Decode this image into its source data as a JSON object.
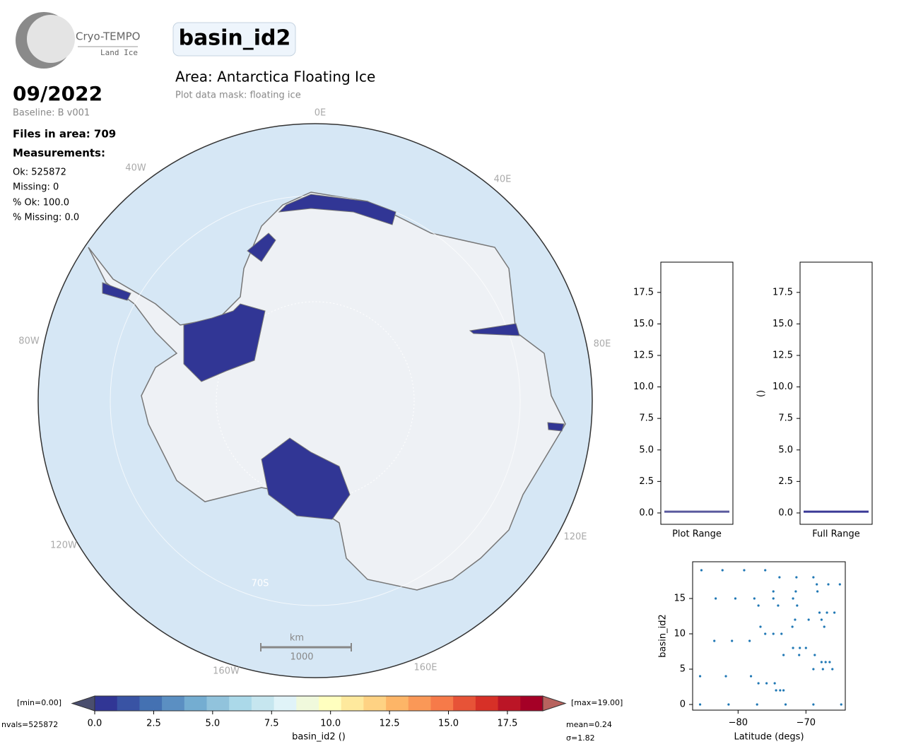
{
  "logo": {
    "name": "Cryo-TEMPO",
    "subtitle": "Land Ice"
  },
  "title": "basin_id2",
  "area": "Area: Antarctica Floating Ice",
  "mask": "Plot data mask: floating ice",
  "date": "09/2022",
  "baseline": "Baseline: B v001",
  "files": "Files in area: 709",
  "measurements": {
    "heading": "Measurements:",
    "lines": [
      "Ok: 525872",
      "Missing: 0",
      "% Ok: 100.0",
      "% Missing: 0.0"
    ]
  },
  "map": {
    "graticule_labels": [
      "0E",
      "40E",
      "80E",
      "120E",
      "160E",
      "160W",
      "120W",
      "80W",
      "40W",
      "70S"
    ],
    "scale_unit": "km",
    "scale_value": "1000"
  },
  "chart_data": [
    {
      "type": "colorbar",
      "label": "basin_id2 ()",
      "xlim": [
        0,
        19
      ],
      "xticks": [
        {
          "value": 0,
          "label": "0.0"
        },
        {
          "value": 2.5,
          "label": "2.5"
        },
        {
          "value": 5,
          "label": "5.0"
        },
        {
          "value": 7.5,
          "label": "7.5"
        },
        {
          "value": 10,
          "label": "10.0"
        },
        {
          "value": 12.5,
          "label": "12.5"
        },
        {
          "value": 15,
          "label": "15.0"
        },
        {
          "value": 17.5,
          "label": "17.5"
        }
      ],
      "colors": [
        "#313695",
        "#3953a4",
        "#4471b2",
        "#5b8fc2",
        "#74add1",
        "#91c3dc",
        "#abd9e9",
        "#c6e6ef",
        "#e0f3f8",
        "#f0f9dc",
        "#ffffbf",
        "#fee99d",
        "#fed283",
        "#fdb567",
        "#fa9857",
        "#f67a49",
        "#e75337",
        "#d73027",
        "#bb1526",
        "#a50026"
      ],
      "under_color": "#4a4e6e",
      "over_color": "#b8635e",
      "min_label": "[min=0.00]",
      "max_label": "[max=19.00]",
      "nvals": "nvals=525872",
      "mean": "mean=0.24",
      "sigma": "σ=1.82"
    },
    {
      "type": "level",
      "xlabel": "Plot Range",
      "values": [
        0.1
      ],
      "color": "#5a5a9e",
      "ylim": [
        -0.9,
        19.9
      ],
      "yticks": [
        {
          "value": 0,
          "label": "0.0"
        },
        {
          "value": 2.5,
          "label": "2.5"
        },
        {
          "value": 5,
          "label": "5.0"
        },
        {
          "value": 7.5,
          "label": "7.5"
        },
        {
          "value": 10,
          "label": "10.0"
        },
        {
          "value": 12.5,
          "label": "12.5"
        },
        {
          "value": 15,
          "label": "15.0"
        },
        {
          "value": 17.5,
          "label": "17.5"
        }
      ]
    },
    {
      "type": "level",
      "xlabel": "Full Range",
      "ylabel": "()",
      "values": [
        0.1
      ],
      "color": "#3b3a96",
      "ylim": [
        -0.9,
        19.9
      ],
      "yticks": [
        {
          "value": 0,
          "label": "0.0"
        },
        {
          "value": 2.5,
          "label": "2.5"
        },
        {
          "value": 5,
          "label": "5.0"
        },
        {
          "value": 7.5,
          "label": "7.5"
        },
        {
          "value": 10,
          "label": "10.0"
        },
        {
          "value": 12.5,
          "label": "12.5"
        },
        {
          "value": 15,
          "label": "15.0"
        },
        {
          "value": 17.5,
          "label": "17.5"
        }
      ]
    },
    {
      "type": "scatter",
      "xlabel": "Latitude (degs)",
      "ylabel": "basin_id2",
      "color": "#1f77b4",
      "xlim": [
        -86.7,
        -64.2
      ],
      "ylim": [
        -0.8,
        20.2
      ],
      "xticks": [
        {
          "value": -80,
          "label": "−80"
        },
        {
          "value": -70,
          "label": "−70"
        }
      ],
      "yticks": [
        0,
        5,
        10,
        15
      ],
      "x": [
        -85.4,
        -82.3,
        -79.1,
        -76.0,
        -73.9,
        -71.4,
        -68.9,
        -68.4,
        -66.7,
        -65.0,
        -74.8,
        -71.5,
        -68.3,
        -83.3,
        -80.4,
        -77.6,
        -74.8,
        -71.9,
        -77.0,
        -74.1,
        -71.3,
        -68.0,
        -66.9,
        -65.8,
        -71.6,
        -69.6,
        -67.7,
        -76.7,
        -72.0,
        -67.3,
        -76.0,
        -74.8,
        -73.6,
        -83.5,
        -80.9,
        -78.3,
        -71.9,
        -70.9,
        -70.0,
        -73.3,
        -71.0,
        -68.7,
        -67.7,
        -67.1,
        -66.5,
        -68.9,
        -67.5,
        -66.1,
        -85.6,
        -81.8,
        -78.1,
        -77.0,
        -75.8,
        -74.6,
        -74.4,
        -73.8,
        -73.3,
        -85.6,
        -81.4,
        -77.2,
        -73.0,
        -68.9,
        -64.8
      ],
      "y": [
        19,
        19,
        19,
        19,
        18,
        18,
        18,
        17,
        17,
        17,
        16,
        16,
        16,
        15,
        15,
        15,
        15,
        15,
        14,
        14,
        14,
        13,
        13,
        13,
        12,
        12,
        12,
        11,
        11,
        11,
        10,
        10,
        10,
        9,
        9,
        9,
        8,
        8,
        8,
        7,
        7,
        7,
        6,
        6,
        6,
        5,
        5,
        5,
        4,
        4,
        4,
        3,
        3,
        3,
        2,
        2,
        2,
        0,
        0,
        0,
        0,
        0,
        0
      ]
    }
  ]
}
